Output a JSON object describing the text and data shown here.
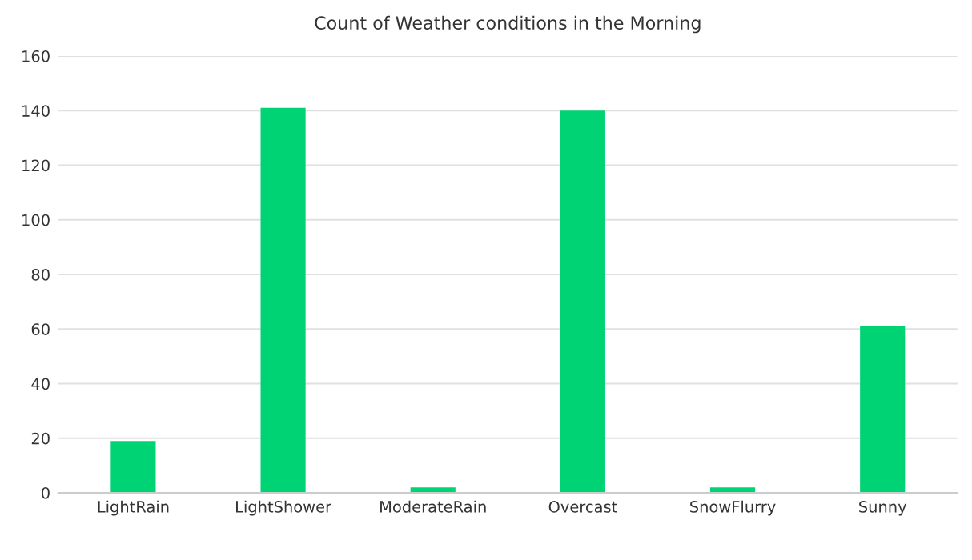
{
  "chart_data": {
    "type": "bar",
    "title": "Count of Weather conditions in the Morning",
    "categories": [
      "LightRain",
      "LightShower",
      "ModerateRain",
      "Overcast",
      "SnowFlurry",
      "Sunny"
    ],
    "values": [
      19,
      141,
      2,
      140,
      2,
      61
    ],
    "color": "#00d374",
    "ylim": [
      0,
      160
    ],
    "yticks": [
      0,
      20,
      40,
      60,
      80,
      100,
      120,
      140,
      160
    ],
    "grid": "y"
  }
}
